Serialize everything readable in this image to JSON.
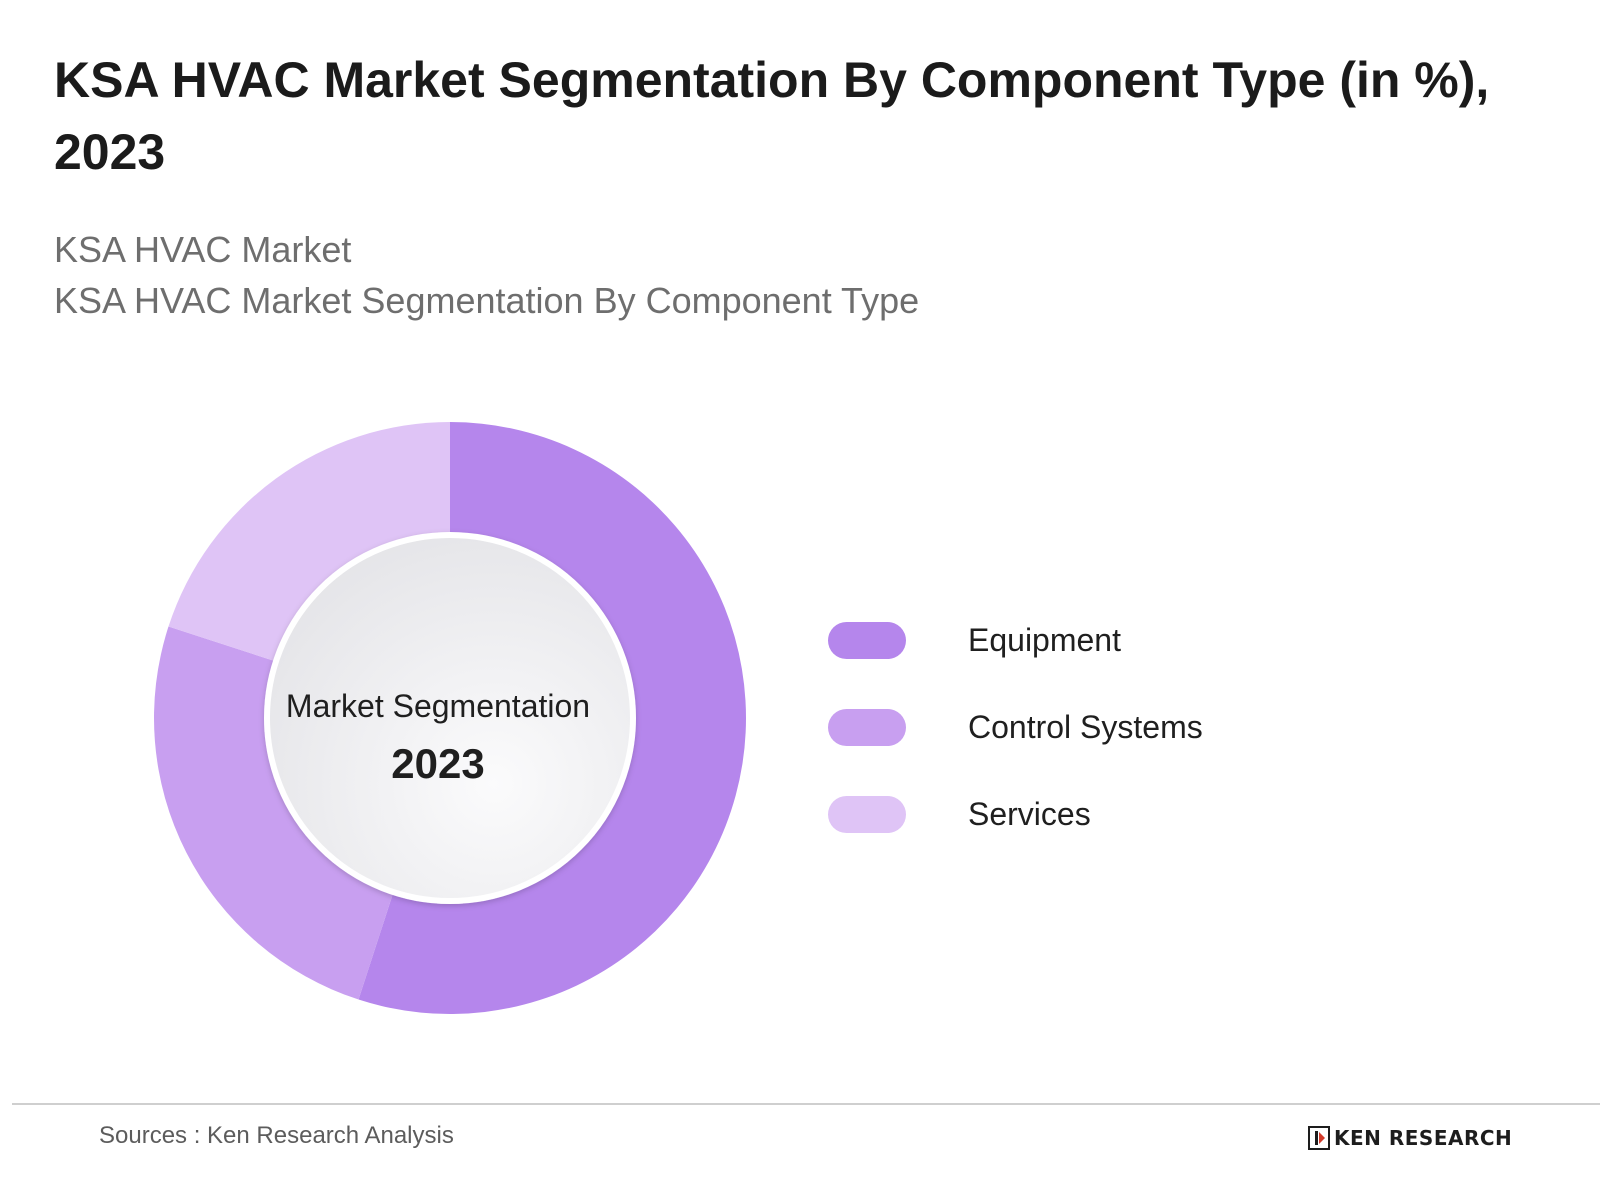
{
  "title": "KSA HVAC Market Segmentation By Component Type (in %), 2023",
  "subtitles": [
    "KSA HVAC Market",
    "KSA HVAC Market Segmentation By Component Type"
  ],
  "center_label": {
    "line1": "Market Segmentation",
    "line2": "2023"
  },
  "source": "Sources : Ken Research Analysis",
  "logo_text": "KEN RESEARCH",
  "chart_data": {
    "type": "pie",
    "variant": "donut",
    "categories": [
      "Equipment",
      "Control Systems",
      "Services"
    ],
    "values": [
      55,
      25,
      20
    ],
    "colors": [
      "#b586ec",
      "#c89ff0",
      "#dfc4f6"
    ],
    "legend_position": "right"
  }
}
